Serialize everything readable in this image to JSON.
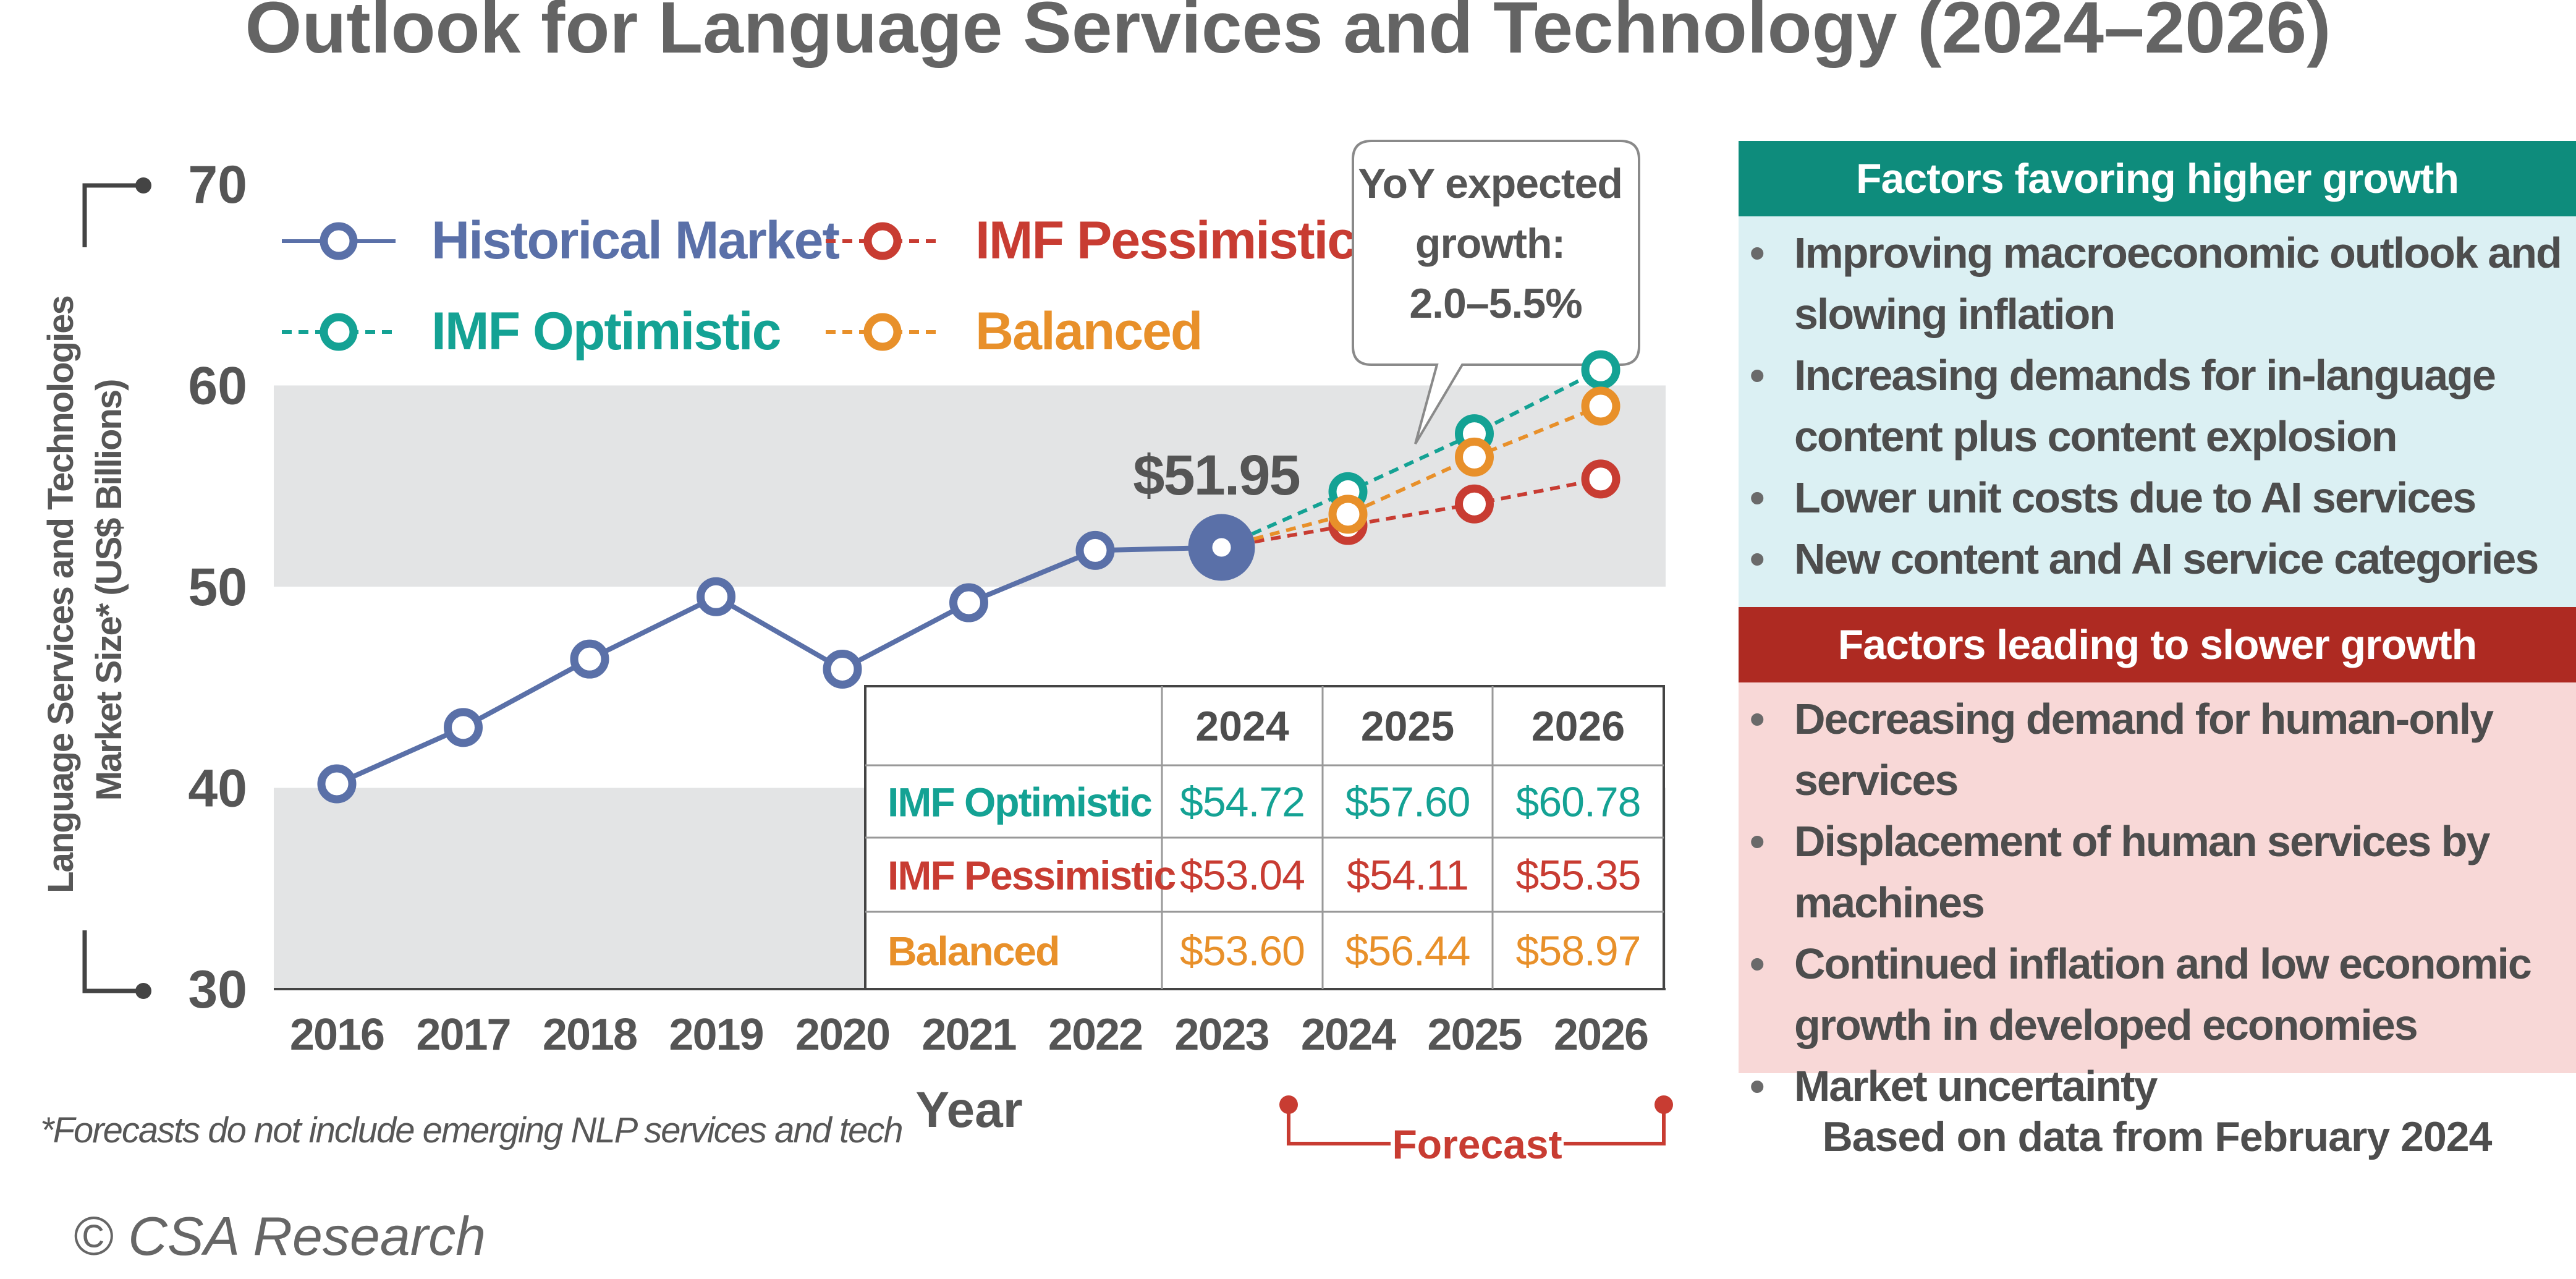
{
  "title": "Outlook for Language Services and Technology (2024–2026)",
  "y_axis_label_line1": "Language Services and Technologies",
  "y_axis_label_line2": "Market Size* (US$ Billions)",
  "x_axis_label": "Year",
  "callout_value": "$51.95",
  "yoy_callout": [
    "YoY expected",
    "growth:",
    "2.0–5.5%"
  ],
  "footnote": "*Forecasts do not include emerging NLP services and tech",
  "copyright": "© CSA Research",
  "forecast_label": "Forecast",
  "based_on": "Based on data from February 2024",
  "colors": {
    "historical": "#5a70a8",
    "optimistic": "#14a294",
    "pessimistic": "#c83c32",
    "balanced": "#e8902a",
    "band": "#e3e4e5",
    "favor_header": "#0e8c7c",
    "favor_body": "#dbf0f3",
    "slow_header": "#ae2a22",
    "slow_body": "#f8d8d7"
  },
  "legend": [
    {
      "label": "Historical Market",
      "color": "#5a70a8",
      "style": "solid"
    },
    {
      "label": "IMF Pessimistic",
      "color": "#c83c32",
      "style": "dashed"
    },
    {
      "label": "IMF Optimistic",
      "color": "#14a294",
      "style": "dashed"
    },
    {
      "label": "Balanced",
      "color": "#e8902a",
      "style": "dashed"
    }
  ],
  "forecast_table": {
    "headers": [
      "",
      "2024",
      "2025",
      "2026"
    ],
    "rows": [
      {
        "label": "IMF Optimistic",
        "values": [
          "$54.72",
          "$57.60",
          "$60.78"
        ],
        "color": "#14a294"
      },
      {
        "label": "IMF Pessimistic",
        "values": [
          "$53.04",
          "$54.11",
          "$55.35"
        ],
        "color": "#c83c32"
      },
      {
        "label": "Balanced",
        "values": [
          "$53.60",
          "$56.44",
          "$58.97"
        ],
        "color": "#e8902a"
      }
    ]
  },
  "favor_panel": {
    "title": "Factors favoring higher growth",
    "items": [
      "Improving macroeconomic outlook and slowing inflation",
      "Increasing demands for in-language content plus content explosion",
      "Lower unit costs due to AI services",
      "New content and AI service categories"
    ]
  },
  "slow_panel": {
    "title": "Factors leading to slower growth",
    "items": [
      "Decreasing demand for human-only services",
      "Displacement of human services by machines",
      "Continued inflation and low economic growth in developed economies",
      "Market uncertainty"
    ]
  },
  "chart_data": {
    "type": "line",
    "title": "Outlook for Language Services and Technology (2024–2026)",
    "xlabel": "Year",
    "ylabel": "Language Services and Technologies Market Size* (US$ Billions)",
    "x": [
      2016,
      2017,
      2018,
      2019,
      2020,
      2021,
      2022,
      2023,
      2024,
      2025,
      2026
    ],
    "ylim": [
      30,
      70
    ],
    "yticks": [
      30,
      40,
      50,
      60,
      70
    ],
    "bands": [
      [
        40,
        30
      ],
      [
        60,
        50
      ]
    ],
    "series": [
      {
        "name": "Historical Market",
        "x": [
          2016,
          2017,
          2018,
          2019,
          2020,
          2021,
          2022,
          2023
        ],
        "values": [
          40.2,
          43.0,
          46.4,
          49.5,
          45.9,
          49.2,
          51.8,
          51.95
        ],
        "style": "solid"
      },
      {
        "name": "IMF Optimistic",
        "x": [
          2023,
          2024,
          2025,
          2026
        ],
        "values": [
          51.95,
          54.72,
          57.6,
          60.78
        ],
        "style": "dashed"
      },
      {
        "name": "IMF Pessimistic",
        "x": [
          2023,
          2024,
          2025,
          2026
        ],
        "values": [
          51.95,
          53.04,
          54.11,
          55.35
        ],
        "style": "dashed"
      },
      {
        "name": "Balanced",
        "x": [
          2023,
          2024,
          2025,
          2026
        ],
        "values": [
          51.95,
          53.6,
          56.44,
          58.97
        ],
        "style": "dashed"
      }
    ]
  }
}
